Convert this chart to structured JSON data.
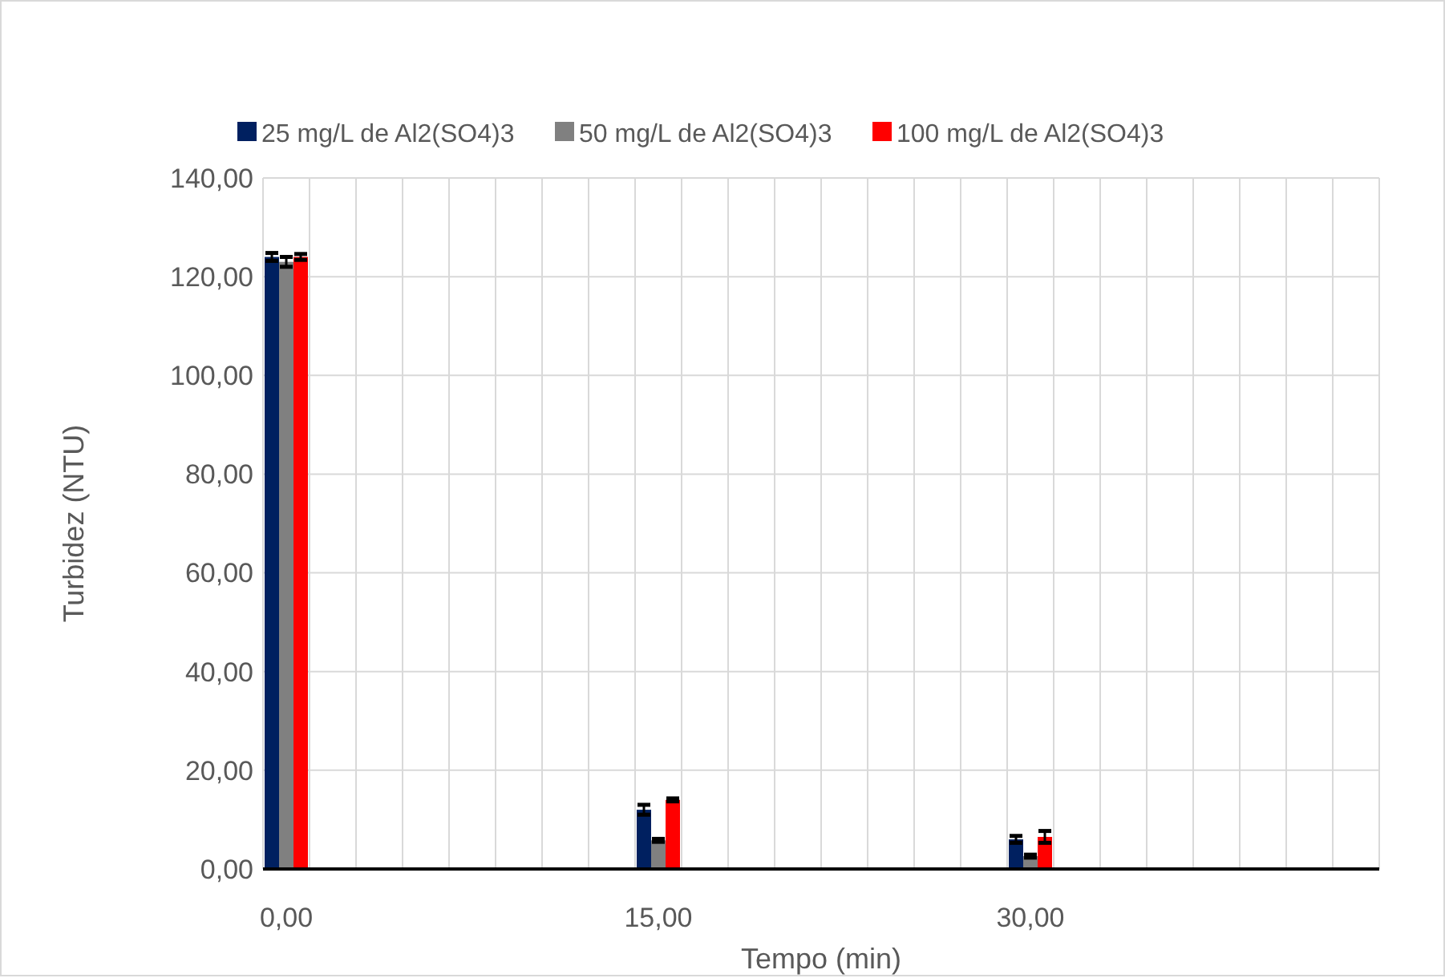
{
  "chart_data": {
    "type": "bar",
    "categories": [
      "0,00",
      null,
      null,
      null,
      null,
      null,
      null,
      null,
      "15,00",
      null,
      null,
      null,
      null,
      null,
      null,
      null,
      "30,00",
      null,
      null,
      null,
      null,
      null,
      null,
      null
    ],
    "xlabel": "Tempo (min)",
    "ylabel": "Turbidez (NTU)",
    "ylim": [
      0,
      140
    ],
    "yticks": [
      {
        "value": 0,
        "label": "0,00"
      },
      {
        "value": 20,
        "label": "20,00"
      },
      {
        "value": 40,
        "label": "40,00"
      },
      {
        "value": 60,
        "label": "60,00"
      },
      {
        "value": 80,
        "label": "80,00"
      },
      {
        "value": 100,
        "label": "100,00"
      },
      {
        "value": 120,
        "label": "120,00"
      },
      {
        "value": 140,
        "label": "140,00"
      }
    ],
    "grid": true,
    "legend": "top",
    "series": [
      {
        "name": "25 mg/L de Al2(SO4)3",
        "color": "#002060",
        "values": [
          124,
          null,
          null,
          null,
          null,
          null,
          null,
          null,
          12,
          null,
          null,
          null,
          null,
          null,
          null,
          null,
          6,
          null,
          null,
          null,
          null,
          null,
          null,
          null
        ],
        "errors": [
          0.8,
          null,
          null,
          null,
          null,
          null,
          null,
          null,
          1,
          null,
          null,
          null,
          null,
          null,
          null,
          null,
          0.7,
          null,
          null,
          null,
          null,
          null,
          null,
          null
        ]
      },
      {
        "name": "50 mg/L de Al2(SO4)3",
        "color": "#808080",
        "values": [
          123,
          null,
          null,
          null,
          null,
          null,
          null,
          null,
          5.8,
          null,
          null,
          null,
          null,
          null,
          null,
          null,
          2.6,
          null,
          null,
          null,
          null,
          null,
          null,
          null
        ],
        "errors": [
          1,
          null,
          null,
          null,
          null,
          null,
          null,
          null,
          0.3,
          null,
          null,
          null,
          null,
          null,
          null,
          null,
          0.3,
          null,
          null,
          null,
          null,
          null,
          null,
          null
        ]
      },
      {
        "name": "100 mg/L de Al2(SO4)3",
        "color": "#ff0000",
        "values": [
          124,
          null,
          null,
          null,
          null,
          null,
          null,
          null,
          14,
          null,
          null,
          null,
          null,
          null,
          null,
          null,
          6.5,
          null,
          null,
          null,
          null,
          null,
          null,
          null
        ],
        "errors": [
          0.6,
          null,
          null,
          null,
          null,
          null,
          null,
          null,
          0.3,
          null,
          null,
          null,
          null,
          null,
          null,
          null,
          1.2,
          null,
          null,
          null,
          null,
          null,
          null,
          null
        ]
      }
    ]
  }
}
